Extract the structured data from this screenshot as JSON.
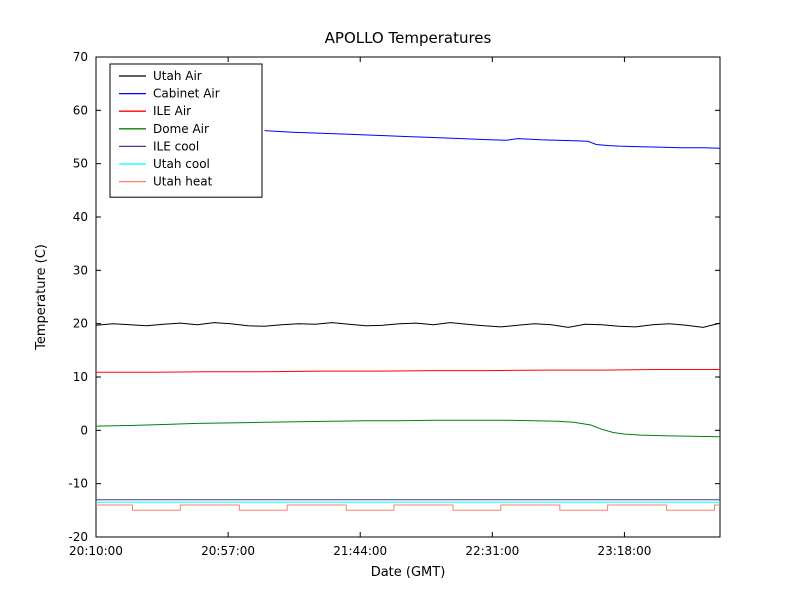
{
  "figure": {
    "background": "#ffffff",
    "frame_color": "#000000"
  },
  "chart_data": {
    "type": "line",
    "title": "APOLLO Temperatures",
    "xlabel": "Date (GMT)",
    "ylabel": "Temperature (C)",
    "xlim": [
      1210,
      1432
    ],
    "ylim": [
      -20,
      70
    ],
    "grid": false,
    "legend_position": "upper-left",
    "yticks": [
      -20,
      -10,
      0,
      10,
      20,
      30,
      40,
      50,
      60,
      70
    ],
    "xticks": [
      {
        "pos": 1210,
        "label": "20:10:00"
      },
      {
        "pos": 1257,
        "label": "20:57:00"
      },
      {
        "pos": 1304,
        "label": "21:44:00"
      },
      {
        "pos": 1351,
        "label": "22:31:00"
      },
      {
        "pos": 1398,
        "label": "23:18:00"
      }
    ],
    "series": [
      {
        "name": "Utah Air",
        "color": "#000000",
        "x": [
          1210,
          1216,
          1222,
          1228,
          1234,
          1240,
          1246,
          1252,
          1258,
          1264,
          1270,
          1276,
          1282,
          1288,
          1294,
          1300,
          1306,
          1312,
          1318,
          1324,
          1330,
          1336,
          1342,
          1348,
          1354,
          1360,
          1366,
          1372,
          1378,
          1384,
          1390,
          1396,
          1402,
          1408,
          1414,
          1420,
          1426,
          1432
        ],
        "y": [
          19.7,
          20.0,
          19.8,
          19.6,
          19.9,
          20.1,
          19.8,
          20.2,
          20.0,
          19.6,
          19.5,
          19.8,
          20.0,
          19.9,
          20.2,
          19.9,
          19.6,
          19.7,
          20.0,
          20.1,
          19.8,
          20.2,
          19.9,
          19.6,
          19.4,
          19.7,
          20.0,
          19.8,
          19.3,
          19.9,
          19.8,
          19.5,
          19.4,
          19.8,
          20.0,
          19.7,
          19.3,
          20.1
        ]
      },
      {
        "name": "Cabinet Air",
        "color": "#0000ff",
        "x": [
          1270,
          1280,
          1290,
          1300,
          1310,
          1320,
          1330,
          1340,
          1350,
          1356,
          1360,
          1364,
          1368,
          1374,
          1380,
          1385,
          1388,
          1392,
          1396,
          1402,
          1410,
          1418,
          1426,
          1432
        ],
        "y": [
          56.2,
          55.9,
          55.7,
          55.5,
          55.3,
          55.1,
          54.9,
          54.7,
          54.5,
          54.4,
          54.7,
          54.6,
          54.5,
          54.4,
          54.3,
          54.2,
          53.6,
          53.4,
          53.3,
          53.2,
          53.1,
          53.0,
          53.0,
          52.9
        ]
      },
      {
        "name": "ILE Air",
        "color": "#ff0000",
        "x": [
          1210,
          1230,
          1250,
          1270,
          1290,
          1310,
          1330,
          1350,
          1370,
          1390,
          1410,
          1432
        ],
        "y": [
          10.9,
          10.9,
          11.0,
          11.0,
          11.1,
          11.1,
          11.2,
          11.2,
          11.3,
          11.3,
          11.4,
          11.4
        ]
      },
      {
        "name": "Dome Air",
        "color": "#008000",
        "x": [
          1210,
          1222,
          1234,
          1246,
          1258,
          1270,
          1282,
          1294,
          1306,
          1318,
          1330,
          1342,
          1354,
          1366,
          1374,
          1380,
          1386,
          1390,
          1394,
          1398,
          1404,
          1412,
          1422,
          1432
        ],
        "y": [
          0.8,
          0.9,
          1.1,
          1.3,
          1.4,
          1.5,
          1.6,
          1.7,
          1.8,
          1.8,
          1.9,
          1.9,
          1.9,
          1.8,
          1.7,
          1.5,
          1.0,
          0.2,
          -0.4,
          -0.7,
          -0.9,
          -1.0,
          -1.1,
          -1.2
        ]
      },
      {
        "name": "ILE cool",
        "color": "#483d8b",
        "x": [
          1210,
          1432
        ],
        "y": [
          -13.0,
          -13.0
        ]
      },
      {
        "name": "Utah cool",
        "color": "#00ffff",
        "x": [
          1210,
          1432
        ],
        "y": [
          -13.5,
          -13.5
        ]
      },
      {
        "name": "Utah heat",
        "color": "#fa8072",
        "x": [
          1210,
          1223,
          1223,
          1240,
          1240,
          1261,
          1261,
          1278,
          1278,
          1299,
          1299,
          1316,
          1316,
          1337,
          1337,
          1354,
          1354,
          1375,
          1375,
          1392,
          1392,
          1413,
          1413,
          1430,
          1430,
          1432
        ],
        "y": [
          -14,
          -14,
          -15,
          -15,
          -14,
          -14,
          -15,
          -15,
          -14,
          -14,
          -15,
          -15,
          -14,
          -14,
          -15,
          -15,
          -14,
          -14,
          -15,
          -15,
          -14,
          -14,
          -15,
          -15,
          -14,
          -14
        ]
      }
    ]
  }
}
